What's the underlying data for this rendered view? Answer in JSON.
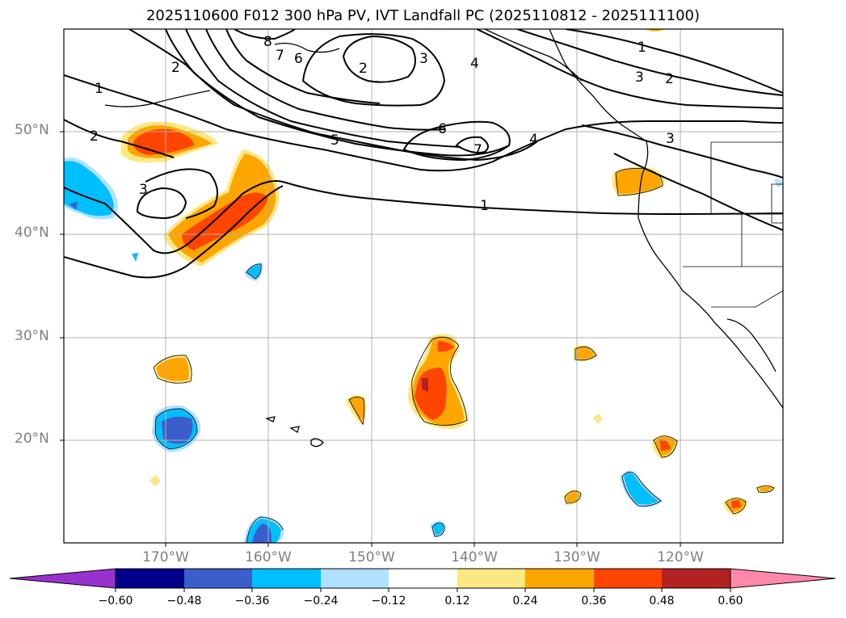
{
  "title": "2025110600 F012 300 hPa PV, IVT Landfall PC (2025110812 - 2025111100)",
  "lat_labels": [
    "50°N",
    "40°N",
    "30°N",
    "20°N"
  ],
  "lon_labels": [
    "170°W",
    "160°W",
    "150°W",
    "140°W",
    "130°W",
    "120°W"
  ],
  "colorbar": {
    "ticks": [
      "−0.60",
      "−0.48",
      "−0.36",
      "−0.24",
      "−0.12",
      "0.12",
      "0.24",
      "0.36",
      "0.48",
      "0.60"
    ],
    "colors": [
      "#9932cc",
      "#00008b",
      "#3a5fcd",
      "#00bfff",
      "#b0e2ff",
      "#ffffff",
      "#fce883",
      "#ffa500",
      "#ff4500",
      "#b22222",
      "#ff88aa"
    ]
  },
  "contour_labels": [
    {
      "text": "1",
      "key": "c1a"
    },
    {
      "text": "2",
      "key": "c2a"
    },
    {
      "text": "3",
      "key": "c3a"
    },
    {
      "text": "2",
      "key": "c2b"
    },
    {
      "text": "8",
      "key": "c8a"
    },
    {
      "text": "7",
      "key": "c7a"
    },
    {
      "text": "6",
      "key": "c6a"
    },
    {
      "text": "2",
      "key": "c2c"
    },
    {
      "text": "3",
      "key": "c3b"
    },
    {
      "text": "4",
      "key": "c4a"
    },
    {
      "text": "5",
      "key": "c5a"
    },
    {
      "text": "6",
      "key": "c6b"
    },
    {
      "text": "7",
      "key": "c7b"
    },
    {
      "text": "4",
      "key": "c4b"
    },
    {
      "text": "1",
      "key": "c1b"
    },
    {
      "text": "1",
      "key": "c1c"
    },
    {
      "text": "3",
      "key": "c3c"
    },
    {
      "text": "2",
      "key": "c2d"
    },
    {
      "text": "3",
      "key": "c3d"
    }
  ]
}
